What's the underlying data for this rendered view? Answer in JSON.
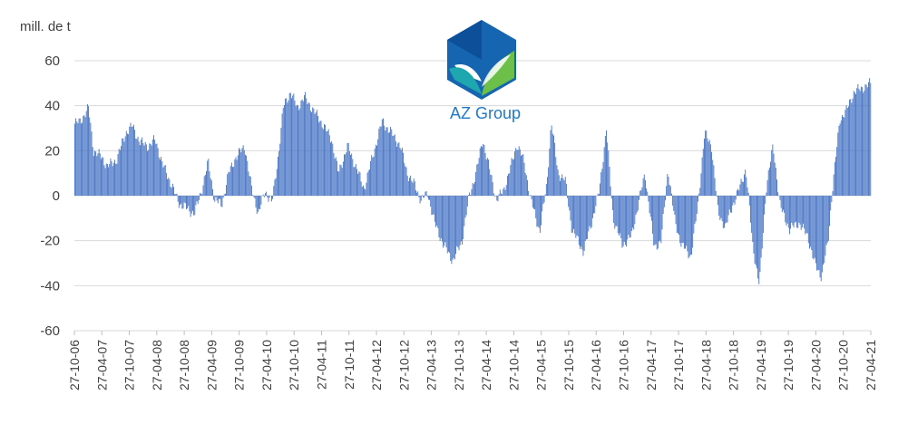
{
  "chart_data": {
    "type": "bar",
    "unit_label": "mill. de t",
    "ylim": [
      -60,
      60
    ],
    "y_ticks": [
      "60",
      "40",
      "20",
      "0",
      "-20",
      "-40",
      "-60"
    ],
    "y_tick_values": [
      60,
      40,
      20,
      0,
      -20,
      -40,
      -60
    ],
    "x_start": "2006-10-27",
    "x_end": "2021-04-27",
    "x_tick_labels": [
      "27-10-06",
      "27-04-07",
      "27-10-07",
      "27-04-08",
      "27-10-08",
      "27-04-09",
      "27-10-09",
      "27-04-10",
      "27-10-10",
      "27-04-11",
      "27-10-11",
      "27-04-12",
      "27-10-12",
      "27-04-13",
      "27-10-13",
      "27-04-14",
      "27-10-14",
      "27-04-15",
      "27-10-15",
      "27-04-16",
      "27-10-16",
      "27-04-17",
      "27-10-17",
      "27-04-18",
      "27-10-18",
      "27-04-19",
      "27-10-19",
      "27-04-20",
      "27-10-20",
      "27-04-21"
    ],
    "bar_color": "#4472c4",
    "grid": true,
    "series_profile": [
      [
        "2006-10-27",
        32
      ],
      [
        "2006-12-01",
        33
      ],
      [
        "2007-01-27",
        39
      ],
      [
        "2007-03-01",
        20
      ],
      [
        "2007-04-27",
        17
      ],
      [
        "2007-06-01",
        13
      ],
      [
        "2007-08-01",
        16
      ],
      [
        "2007-10-01",
        28
      ],
      [
        "2007-11-15",
        31
      ],
      [
        "2008-01-01",
        24
      ],
      [
        "2008-03-01",
        22
      ],
      [
        "2008-04-15",
        25
      ],
      [
        "2008-06-01",
        14
      ],
      [
        "2008-08-01",
        5
      ],
      [
        "2008-09-15",
        -3
      ],
      [
        "2008-11-15",
        -6
      ],
      [
        "2009-01-01",
        -8
      ],
      [
        "2009-02-15",
        2
      ],
      [
        "2009-04-01",
        15
      ],
      [
        "2009-05-15",
        -2
      ],
      [
        "2009-07-01",
        -4
      ],
      [
        "2009-08-15",
        10
      ],
      [
        "2009-10-01",
        17
      ],
      [
        "2009-12-01",
        22
      ],
      [
        "2010-01-15",
        3
      ],
      [
        "2010-03-01",
        -8
      ],
      [
        "2010-04-15",
        2
      ],
      [
        "2010-06-01",
        -3
      ],
      [
        "2010-07-15",
        20
      ],
      [
        "2010-08-15",
        40
      ],
      [
        "2010-10-01",
        46
      ],
      [
        "2010-11-15",
        39
      ],
      [
        "2011-01-01",
        44
      ],
      [
        "2011-03-01",
        38
      ],
      [
        "2011-05-01",
        32
      ],
      [
        "2011-07-01",
        25
      ],
      [
        "2011-08-15",
        10
      ],
      [
        "2011-10-15",
        22
      ],
      [
        "2011-12-15",
        12
      ],
      [
        "2012-02-01",
        3
      ],
      [
        "2012-04-01",
        18
      ],
      [
        "2012-06-01",
        33
      ],
      [
        "2012-08-01",
        28
      ],
      [
        "2012-10-01",
        22
      ],
      [
        "2012-11-15",
        10
      ],
      [
        "2013-01-01",
        5
      ],
      [
        "2013-02-15",
        -2
      ],
      [
        "2013-04-01",
        1
      ],
      [
        "2013-05-15",
        -12
      ],
      [
        "2013-07-15",
        -22
      ],
      [
        "2013-09-15",
        -29
      ],
      [
        "2013-11-15",
        -20
      ],
      [
        "2014-01-01",
        0
      ],
      [
        "2014-02-15",
        10
      ],
      [
        "2014-04-01",
        25
      ],
      [
        "2014-05-15",
        12
      ],
      [
        "2014-07-01",
        -2
      ],
      [
        "2014-08-15",
        2
      ],
      [
        "2014-10-01",
        12
      ],
      [
        "2014-11-15",
        23
      ],
      [
        "2015-01-01",
        15
      ],
      [
        "2015-02-15",
        -2
      ],
      [
        "2015-04-15",
        -16
      ],
      [
        "2015-06-01",
        5
      ],
      [
        "2015-07-01",
        33
      ],
      [
        "2015-08-15",
        10
      ],
      [
        "2015-10-01",
        7
      ],
      [
        "2015-11-15",
        -15
      ],
      [
        "2016-02-01",
        -25
      ],
      [
        "2016-04-01",
        -10
      ],
      [
        "2016-05-15",
        2
      ],
      [
        "2016-07-01",
        30
      ],
      [
        "2016-08-15",
        -10
      ],
      [
        "2016-10-15",
        -22
      ],
      [
        "2016-12-15",
        -18
      ],
      [
        "2017-02-01",
        -3
      ],
      [
        "2017-03-15",
        10
      ],
      [
        "2017-05-15",
        -23
      ],
      [
        "2017-07-01",
        -20
      ],
      [
        "2017-08-15",
        12
      ],
      [
        "2017-10-01",
        -12
      ],
      [
        "2017-11-15",
        -22
      ],
      [
        "2018-01-15",
        -27
      ],
      [
        "2018-03-01",
        -5
      ],
      [
        "2018-04-15",
        28
      ],
      [
        "2018-06-01",
        22
      ],
      [
        "2018-07-15",
        -8
      ],
      [
        "2018-09-01",
        -14
      ],
      [
        "2018-10-15",
        -5
      ],
      [
        "2018-12-01",
        3
      ],
      [
        "2019-01-15",
        12
      ],
      [
        "2019-03-01",
        -22
      ],
      [
        "2019-04-15",
        -40
      ],
      [
        "2019-06-01",
        5
      ],
      [
        "2019-07-15",
        22
      ],
      [
        "2019-09-01",
        -5
      ],
      [
        "2019-11-01",
        -15
      ],
      [
        "2020-01-01",
        -12
      ],
      [
        "2020-03-01",
        -18
      ],
      [
        "2020-04-15",
        -30
      ],
      [
        "2020-06-01",
        -36
      ],
      [
        "2020-07-15",
        -20
      ],
      [
        "2020-08-15",
        5
      ],
      [
        "2020-10-01",
        34
      ],
      [
        "2020-11-15",
        38
      ],
      [
        "2021-01-01",
        46
      ],
      [
        "2021-03-01",
        48
      ],
      [
        "2021-04-27",
        50
      ]
    ]
  },
  "logo": {
    "text": "AZ Group",
    "colors": [
      "#1565b0",
      "#1fa7b0",
      "#6cc04a",
      "#0d4f99"
    ]
  }
}
